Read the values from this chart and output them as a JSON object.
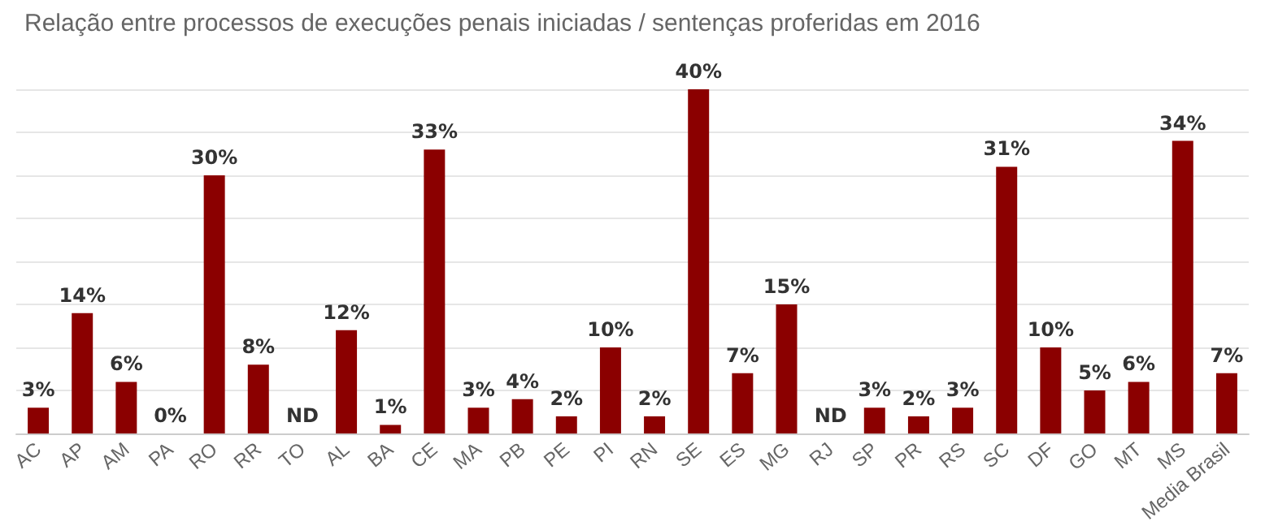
{
  "chart_data": {
    "type": "bar",
    "title": "Relação entre processos de execuções penais iniciadas / sentenças proferidas em 2016",
    "categories": [
      "AC",
      "AP",
      "AM",
      "PA",
      "RO",
      "RR",
      "TO",
      "AL",
      "BA",
      "CE",
      "MA",
      "PB",
      "PE",
      "PI",
      "RN",
      "SE",
      "ES",
      "MG",
      "RJ",
      "SP",
      "PR",
      "RS",
      "SC",
      "DF",
      "GO",
      "MT",
      "MS",
      "Media Brasil"
    ],
    "values": [
      3,
      14,
      6,
      0,
      30,
      8,
      null,
      12,
      1,
      33,
      3,
      4,
      2,
      10,
      2,
      40,
      7,
      15,
      null,
      3,
      2,
      3,
      31,
      10,
      5,
      6,
      34,
      7
    ],
    "value_labels": [
      "3%",
      "14%",
      "6%",
      "0%",
      "30%",
      "8%",
      "ND",
      "12%",
      "1%",
      "33%",
      "3%",
      "4%",
      "2%",
      "10%",
      "2%",
      "40%",
      "7%",
      "15%",
      "ND",
      "3%",
      "2%",
      "3%",
      "31%",
      "10%",
      "5%",
      "6%",
      "34%",
      "7%"
    ],
    "color": "#8b0000",
    "ylim": [
      0,
      40
    ],
    "yticks": [
      {
        "value": 0,
        "label": null
      },
      {
        "value": 5,
        "label": null
      },
      {
        "value": 10,
        "label": null
      },
      {
        "value": 15,
        "label": null
      },
      {
        "value": 20,
        "label": null
      },
      {
        "value": 25,
        "label": null
      },
      {
        "value": 30,
        "label": null
      },
      {
        "value": 35,
        "label": null
      },
      {
        "value": 40,
        "label": null
      }
    ],
    "grid": "y",
    "tick_labels": "x"
  }
}
